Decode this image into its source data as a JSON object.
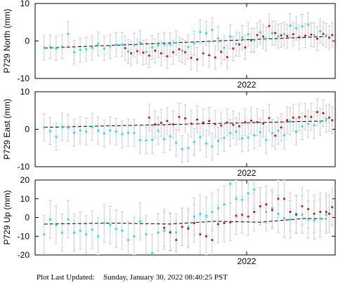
{
  "footer": {
    "label": "Plot Last Updated:",
    "timestamp": "Sunday, January 30, 2022 08:40:25 PST"
  },
  "colors": {
    "before": "#00e5ee",
    "after": "#e00000",
    "error_bar": "#cccccc",
    "model": "#000000"
  },
  "chart_data": [
    {
      "type": "scatter",
      "ylabel": "P729 North (mm)",
      "ylim": [
        -10,
        10
      ],
      "yticks": [
        -10,
        0,
        10
      ],
      "xticks": [
        {
          "x": 0.705,
          "label": "2022"
        }
      ],
      "grid": false,
      "error_bar": 3.2,
      "model": [
        [
          0.03,
          -1.9
        ],
        [
          0.97,
          1.2
        ]
      ],
      "series": [
        {
          "points": [
            [
              0.03,
              -1.8
            ],
            [
              0.05,
              -1.6
            ],
            [
              0.07,
              -2.0
            ],
            [
              0.09,
              -1.5
            ],
            [
              0.11,
              1.9
            ],
            [
              0.13,
              -3.0
            ],
            [
              0.15,
              -2.4
            ],
            [
              0.17,
              -2.2
            ],
            [
              0.19,
              -1.8
            ],
            [
              0.21,
              -0.8
            ],
            [
              0.23,
              -2.0
            ],
            [
              0.25,
              -1.5
            ],
            [
              0.27,
              -1.0
            ],
            [
              0.29,
              -0.9
            ],
            [
              0.31,
              -2.8
            ],
            [
              0.33,
              -1.1
            ],
            [
              0.35,
              -0.4
            ],
            [
              0.37,
              -2.9
            ],
            [
              0.39,
              -1.7
            ],
            [
              0.41,
              -1.2
            ],
            [
              0.43,
              -0.9
            ],
            [
              0.45,
              -1.0
            ],
            [
              0.47,
              -0.5
            ],
            [
              0.49,
              -2.6
            ],
            [
              0.51,
              -1.6
            ],
            [
              0.53,
              -0.6
            ],
            [
              0.55,
              2.4
            ],
            [
              0.57,
              2.1
            ],
            [
              0.59,
              3.0
            ],
            [
              0.61,
              0.7
            ],
            [
              0.63,
              -1.8
            ],
            [
              0.65,
              1.2
            ],
            [
              0.67,
              -0.8
            ],
            [
              0.69,
              0.9
            ],
            [
              0.71,
              1.8
            ],
            [
              0.73,
              0.2
            ],
            [
              0.75,
              2.3
            ],
            [
              0.77,
              0.6
            ],
            [
              0.79,
              2.1
            ],
            [
              0.81,
              1.3
            ],
            [
              0.83,
              1.9
            ],
            [
              0.85,
              4.1
            ],
            [
              0.87,
              3.4
            ],
            [
              0.89,
              3.9
            ],
            [
              0.91,
              4.4
            ],
            [
              0.93,
              1.6
            ],
            [
              0.95,
              2.6
            ],
            [
              0.97,
              1.5
            ]
          ]
        },
        {
          "points": [
            [
              0.3,
              -1.9
            ],
            [
              0.32,
              -3.3
            ],
            [
              0.34,
              -2.7
            ],
            [
              0.36,
              -3.1
            ],
            [
              0.38,
              -3.9
            ],
            [
              0.4,
              -2.6
            ],
            [
              0.42,
              -3.3
            ],
            [
              0.44,
              -4.1
            ],
            [
              0.46,
              -3.0
            ],
            [
              0.48,
              -2.2
            ],
            [
              0.5,
              -3.0
            ],
            [
              0.52,
              -4.5
            ],
            [
              0.54,
              -4.9
            ],
            [
              0.56,
              -3.3
            ],
            [
              0.58,
              -3.8
            ],
            [
              0.6,
              -4.4
            ],
            [
              0.62,
              -2.9
            ],
            [
              0.64,
              -4.3
            ],
            [
              0.66,
              -2.0
            ],
            [
              0.68,
              -0.9
            ],
            [
              0.7,
              -1.7
            ],
            [
              0.72,
              0.2
            ],
            [
              0.74,
              1.6
            ],
            [
              0.76,
              1.2
            ],
            [
              0.78,
              4.0
            ],
            [
              0.8,
              2.1
            ],
            [
              0.82,
              1.5
            ],
            [
              0.84,
              1.3
            ],
            [
              0.86,
              1.8
            ],
            [
              0.88,
              1.0
            ],
            [
              0.9,
              1.4
            ],
            [
              0.92,
              1.7
            ],
            [
              0.94,
              0.6
            ],
            [
              0.96,
              1.9
            ],
            [
              0.98,
              0.9
            ],
            [
              0.99,
              1.6
            ]
          ]
        }
      ]
    },
    {
      "type": "scatter",
      "ylabel": "P729 East (mm)",
      "ylim": [
        -10,
        10
      ],
      "yticks": [
        -10,
        0,
        10
      ],
      "xticks": [
        {
          "x": 0.705,
          "label": "2022"
        }
      ],
      "grid": false,
      "error_bar": 3.6,
      "model": [
        [
          0.03,
          0.5
        ],
        [
          0.97,
          2.2
        ]
      ],
      "series": [
        {
          "points": [
            [
              0.03,
              0.5
            ],
            [
              0.05,
              -0.5
            ],
            [
              0.07,
              -2.0
            ],
            [
              0.09,
              0.6
            ],
            [
              0.11,
              0.4
            ],
            [
              0.13,
              -0.9
            ],
            [
              0.15,
              -0.3
            ],
            [
              0.17,
              -0.6
            ],
            [
              0.19,
              0.6
            ],
            [
              0.21,
              -0.4
            ],
            [
              0.23,
              -1.1
            ],
            [
              0.25,
              -0.3
            ],
            [
              0.27,
              -0.6
            ],
            [
              0.29,
              -1.3
            ],
            [
              0.31,
              -0.9
            ],
            [
              0.33,
              -1.0
            ],
            [
              0.35,
              -2.9
            ],
            [
              0.37,
              -3.0
            ],
            [
              0.39,
              -2.8
            ],
            [
              0.41,
              -0.4
            ],
            [
              0.43,
              -2.6
            ],
            [
              0.45,
              -1.9
            ],
            [
              0.47,
              -3.6
            ],
            [
              0.49,
              -5.3
            ],
            [
              0.51,
              -5.0
            ],
            [
              0.53,
              -3.4
            ],
            [
              0.55,
              -2.1
            ],
            [
              0.57,
              -3.8
            ],
            [
              0.59,
              -4.6
            ],
            [
              0.61,
              -3.1
            ],
            [
              0.63,
              -2.3
            ],
            [
              0.65,
              -1.0
            ],
            [
              0.67,
              -0.6
            ],
            [
              0.69,
              -2.4
            ],
            [
              0.71,
              -2.2
            ],
            [
              0.73,
              -1.6
            ],
            [
              0.75,
              -0.8
            ],
            [
              0.77,
              -2.9
            ],
            [
              0.79,
              -1.0
            ],
            [
              0.81,
              -0.4
            ],
            [
              0.83,
              -1.6
            ],
            [
              0.85,
              2.1
            ],
            [
              0.87,
              -0.6
            ],
            [
              0.89,
              0.8
            ],
            [
              0.91,
              1.4
            ],
            [
              0.93,
              1.1
            ],
            [
              0.95,
              2.0
            ],
            [
              0.97,
              2.8
            ]
          ]
        },
        {
          "points": [
            [
              0.38,
              3.1
            ],
            [
              0.4,
              1.3
            ],
            [
              0.42,
              1.7
            ],
            [
              0.44,
              2.2
            ],
            [
              0.46,
              1.3
            ],
            [
              0.48,
              3.3
            ],
            [
              0.5,
              2.9
            ],
            [
              0.52,
              1.5
            ],
            [
              0.54,
              2.6
            ],
            [
              0.56,
              1.8
            ],
            [
              0.58,
              2.2
            ],
            [
              0.6,
              1.4
            ],
            [
              0.62,
              1.0
            ],
            [
              0.64,
              1.8
            ],
            [
              0.66,
              1.2
            ],
            [
              0.68,
              0.8
            ],
            [
              0.7,
              1.9
            ],
            [
              0.72,
              2.3
            ],
            [
              0.74,
              1.9
            ],
            [
              0.76,
              1.5
            ],
            [
              0.78,
              3.0
            ],
            [
              0.8,
              -1.7
            ],
            [
              0.82,
              0.5
            ],
            [
              0.84,
              2.4
            ],
            [
              0.86,
              3.1
            ],
            [
              0.88,
              3.2
            ],
            [
              0.9,
              3.4
            ],
            [
              0.92,
              3.3
            ],
            [
              0.94,
              4.6
            ],
            [
              0.96,
              4.3
            ],
            [
              0.98,
              3.1
            ],
            [
              0.99,
              2.4
            ]
          ]
        }
      ]
    },
    {
      "type": "scatter",
      "ylabel": "P729 Up (mm)",
      "ylim": [
        -20,
        20
      ],
      "yticks": [
        -20,
        -10,
        0,
        10,
        20
      ],
      "xticks": [
        {
          "x": 0.705,
          "label": "2022"
        }
      ],
      "grid": false,
      "error_bar": 10,
      "model": [
        [
          0.03,
          -3.5
        ],
        [
          0.25,
          -3.0
        ],
        [
          0.45,
          -3.5
        ],
        [
          0.6,
          -2.0
        ],
        [
          0.75,
          -2.5
        ],
        [
          0.9,
          -0.5
        ],
        [
          0.97,
          -0.7
        ]
      ],
      "series": [
        {
          "points": [
            [
              0.03,
              -9.0
            ],
            [
              0.05,
              -1.0
            ],
            [
              0.07,
              -4.0
            ],
            [
              0.09,
              -8.0
            ],
            [
              0.11,
              -1.0
            ],
            [
              0.13,
              -8.0
            ],
            [
              0.15,
              -7.0
            ],
            [
              0.17,
              -9.0
            ],
            [
              0.19,
              -6.5
            ],
            [
              0.21,
              -10.0
            ],
            [
              0.23,
              -3.0
            ],
            [
              0.25,
              -4.0
            ],
            [
              0.27,
              -6.0
            ],
            [
              0.29,
              -7.0
            ],
            [
              0.31,
              -12.0
            ],
            [
              0.33,
              -10.0
            ],
            [
              0.35,
              -2.0
            ],
            [
              0.37,
              -9.0
            ],
            [
              0.39,
              -19.0
            ],
            [
              0.41,
              -8.0
            ],
            [
              0.43,
              -7.0
            ],
            [
              0.45,
              -7.5
            ],
            [
              0.47,
              -8.0
            ],
            [
              0.49,
              -5.0
            ],
            [
              0.51,
              -5.0
            ],
            [
              0.53,
              0.5
            ],
            [
              0.55,
              2.0
            ],
            [
              0.57,
              1.0
            ],
            [
              0.59,
              3.0
            ],
            [
              0.61,
              5.0
            ],
            [
              0.63,
              7.0
            ],
            [
              0.65,
              18.0
            ],
            [
              0.67,
              10.0
            ],
            [
              0.69,
              9.5
            ],
            [
              0.71,
              13.0
            ],
            [
              0.73,
              15.0
            ],
            [
              0.75,
              6.0
            ],
            [
              0.77,
              3.0
            ],
            [
              0.79,
              5.0
            ],
            [
              0.81,
              2.0
            ],
            [
              0.83,
              -0.5
            ],
            [
              0.85,
              -1.0
            ],
            [
              0.87,
              2.0
            ],
            [
              0.89,
              1.5
            ],
            [
              0.91,
              -1.0
            ],
            [
              0.93,
              -1.5
            ],
            [
              0.95,
              -0.5
            ],
            [
              0.97,
              1.5
            ]
          ]
        },
        {
          "points": [
            [
              0.43,
              -5.5
            ],
            [
              0.45,
              -8.0
            ],
            [
              0.47,
              -12.0
            ],
            [
              0.49,
              -5.0
            ],
            [
              0.51,
              -6.0
            ],
            [
              0.53,
              -3.0
            ],
            [
              0.55,
              -9.0
            ],
            [
              0.57,
              -10.0
            ],
            [
              0.59,
              -12.0
            ],
            [
              0.61,
              -3.5
            ],
            [
              0.63,
              -3.0
            ],
            [
              0.65,
              -2.5
            ],
            [
              0.67,
              1.0
            ],
            [
              0.69,
              1.5
            ],
            [
              0.71,
              0.5
            ],
            [
              0.73,
              3.0
            ],
            [
              0.75,
              6.0
            ],
            [
              0.77,
              7.0
            ],
            [
              0.79,
              4.0
            ],
            [
              0.81,
              10.0
            ],
            [
              0.83,
              10.0
            ],
            [
              0.85,
              3.0
            ],
            [
              0.87,
              1.5
            ],
            [
              0.89,
              6.0
            ],
            [
              0.91,
              4.5
            ],
            [
              0.93,
              2.0
            ],
            [
              0.95,
              3.0
            ],
            [
              0.97,
              3.0
            ],
            [
              0.98,
              2.0
            ],
            [
              0.99,
              5.5
            ]
          ]
        }
      ]
    }
  ]
}
